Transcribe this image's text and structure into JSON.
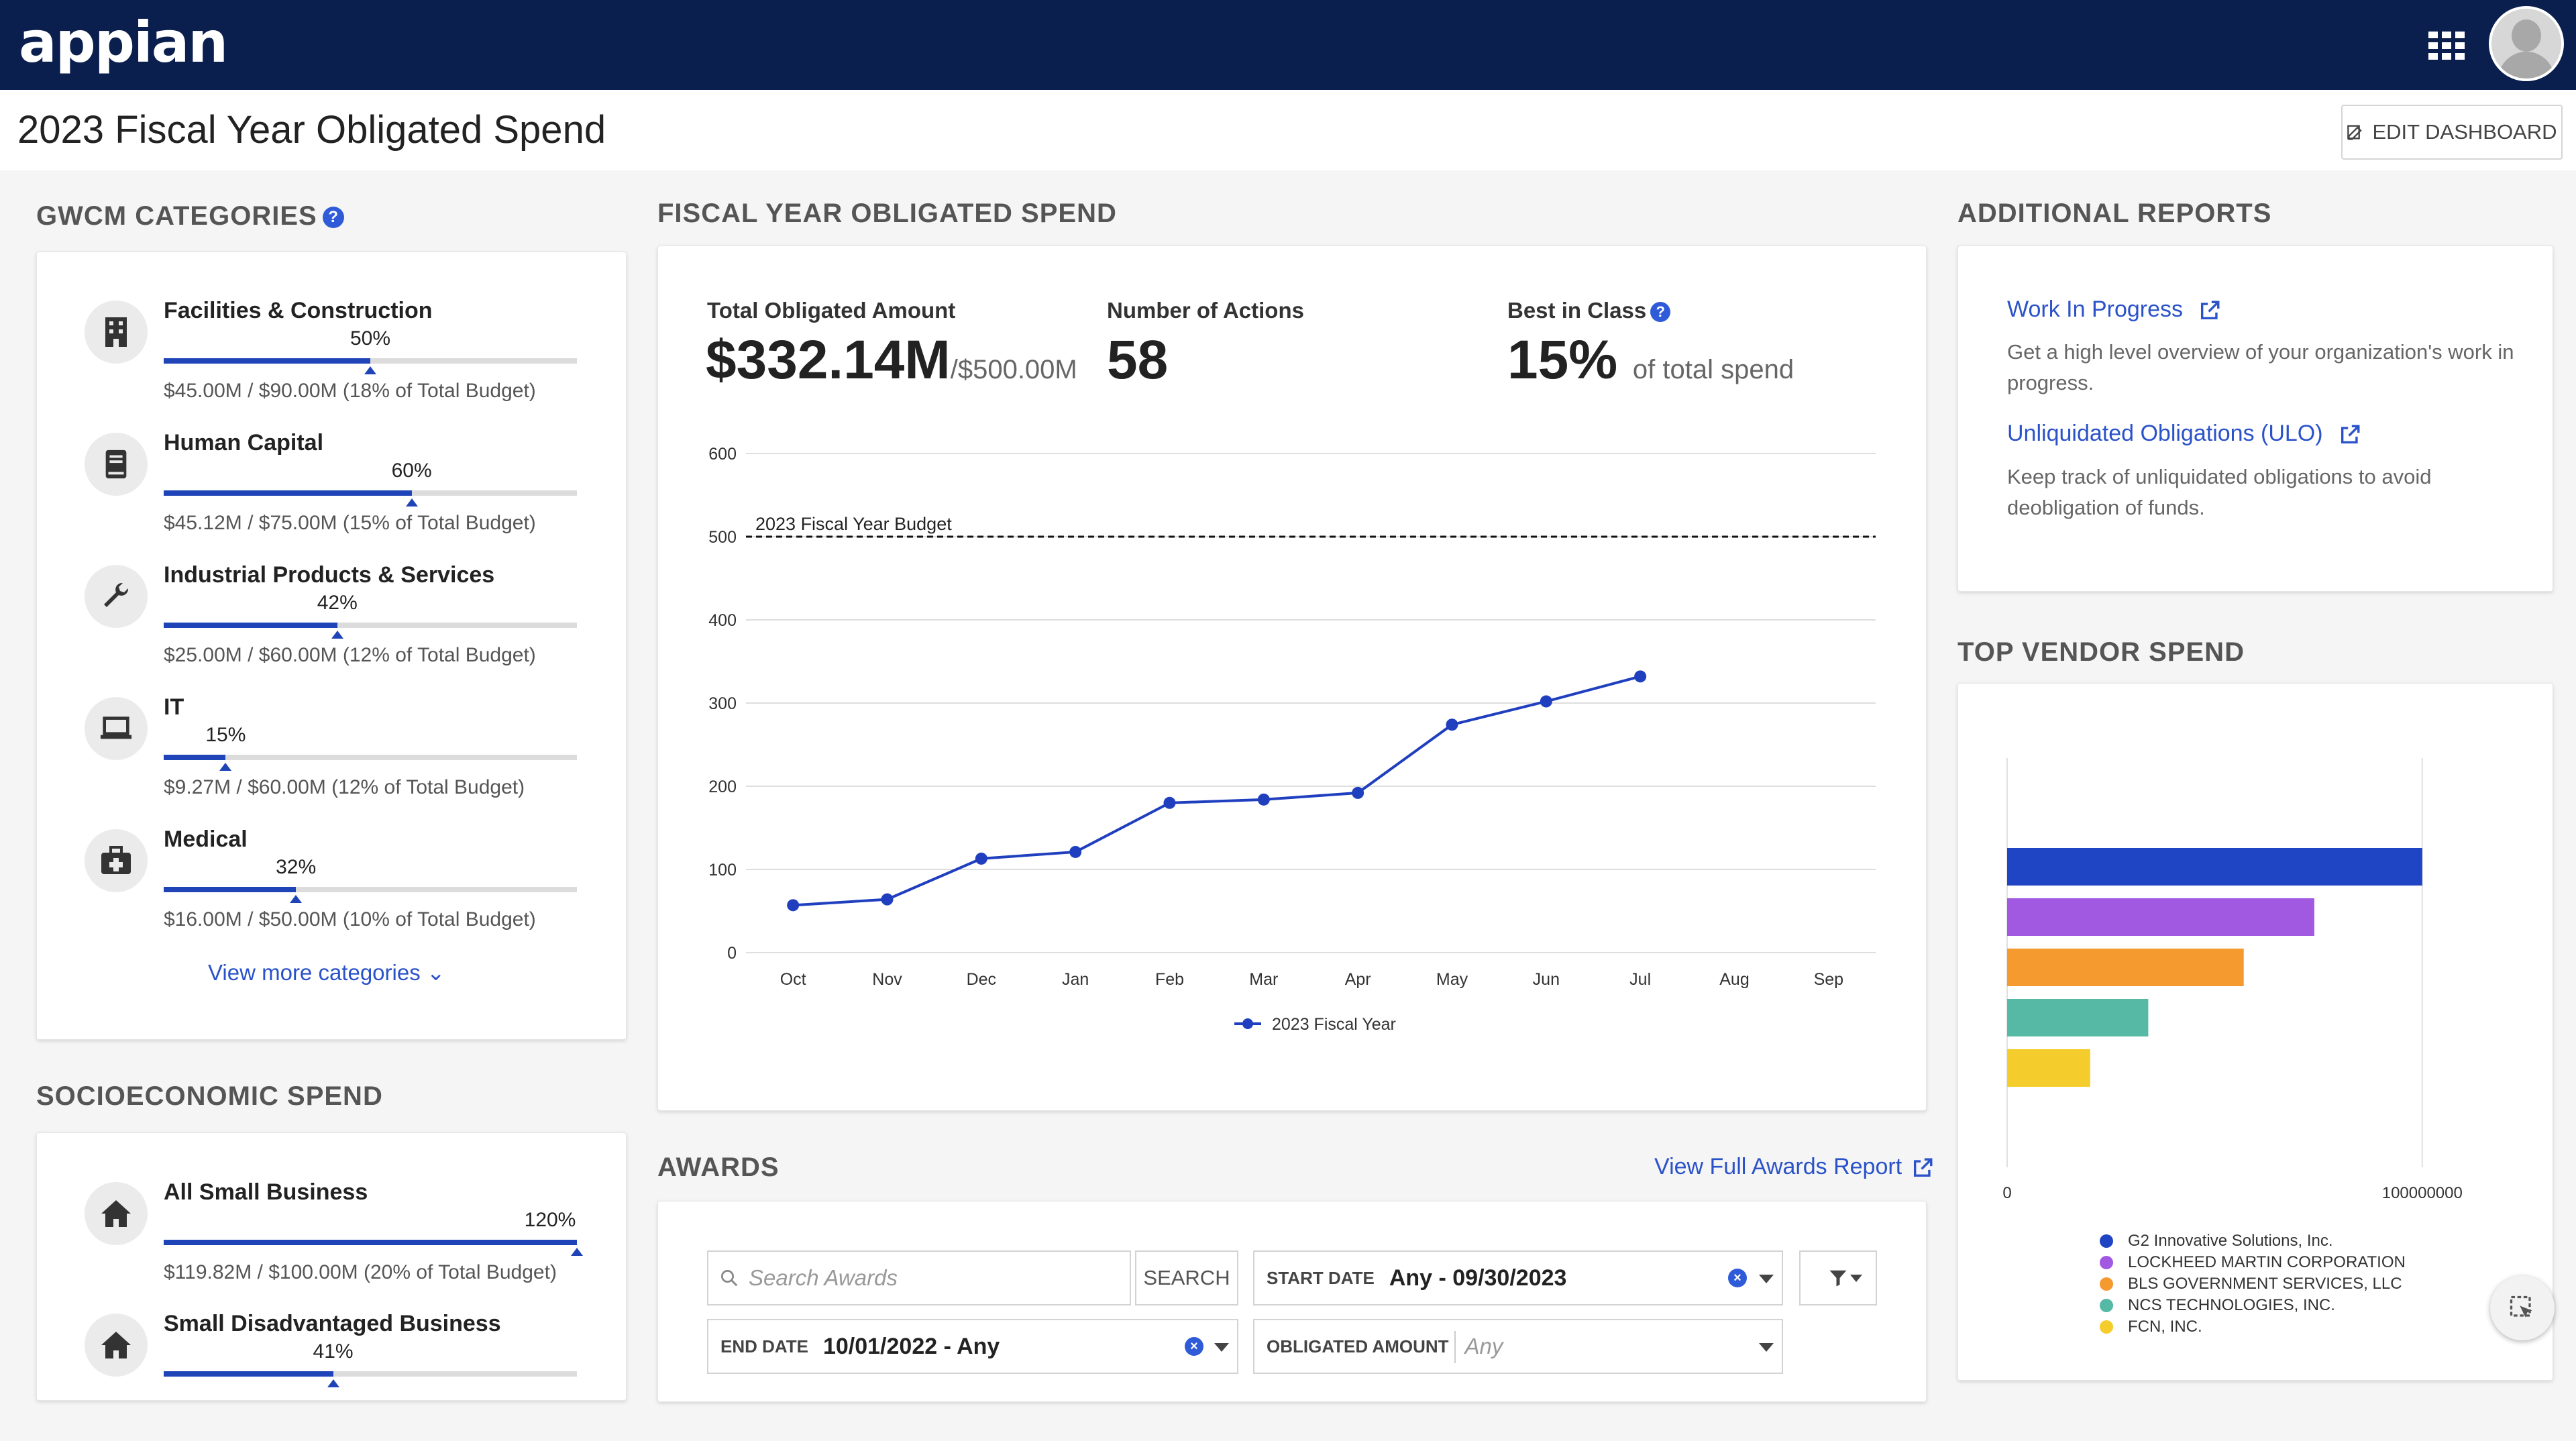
{
  "app": {
    "logo": "appian"
  },
  "header": {
    "title": "2023 Fiscal Year Obligated Spend",
    "edit_button": "EDIT DASHBOARD"
  },
  "gwcm": {
    "title": "GWCM CATEGORIES",
    "help": "?",
    "categories": [
      {
        "name": "Facilities & Construction",
        "percent": 50,
        "percent_label": "50%",
        "detail": "$45.00M / $90.00M (18% of Total Budget)",
        "icon": "building-icon"
      },
      {
        "name": "Human Capital",
        "percent": 60,
        "percent_label": "60%",
        "detail": "$45.12M / $75.00M (15% of Total Budget)",
        "icon": "book-icon"
      },
      {
        "name": "Industrial Products & Services",
        "percent": 42,
        "percent_label": "42%",
        "detail": "$25.00M / $60.00M (12% of Total Budget)",
        "icon": "wrench-icon"
      },
      {
        "name": "IT",
        "percent": 15,
        "percent_label": "15%",
        "detail": "$9.27M / $60.00M (12% of Total Budget)",
        "icon": "laptop-icon"
      },
      {
        "name": "Medical",
        "percent": 32,
        "percent_label": "32%",
        "detail": "$16.00M / $50.00M (10% of Total Budget)",
        "icon": "medical-kit-icon"
      }
    ],
    "view_more": "View more categories"
  },
  "socio": {
    "title": "SOCIOECONOMIC SPEND",
    "items": [
      {
        "name": "All Small Business",
        "percent": 100,
        "percent_label": "120%",
        "detail": "$119.82M / $100.00M (20% of Total Budget)",
        "icon": "home-icon"
      },
      {
        "name": "Small Disadvantaged Business",
        "percent": 41,
        "percent_label": "41%",
        "detail": "",
        "icon": "home-icon"
      }
    ]
  },
  "fiscal": {
    "title": "FISCAL YEAR OBLIGATED SPEND",
    "kpis": {
      "total_label": "Total Obligated Amount",
      "total_value": "$332.14M",
      "total_sub": "/$500.00M",
      "actions_label": "Number of Actions",
      "actions_value": "58",
      "bic_label": "Best in Class",
      "bic_value": "15%",
      "bic_sub": "of total spend"
    }
  },
  "chart_data": [
    {
      "type": "line",
      "categories": [
        "Oct",
        "Nov",
        "Dec",
        "Jan",
        "Feb",
        "Mar",
        "Apr",
        "May",
        "Jun",
        "Jul",
        "Aug",
        "Sep"
      ],
      "series": [
        {
          "name": "2023 Fiscal Year",
          "values": [
            57,
            64,
            113,
            121,
            180,
            184,
            192,
            274,
            302,
            332,
            null,
            null
          ],
          "color": "#1f3fbf"
        }
      ],
      "ylim": [
        0,
        600
      ],
      "yticks": [
        0,
        100,
        200,
        300,
        400,
        500,
        600
      ],
      "reference_line": {
        "value": 500,
        "label": "2023 Fiscal Year Budget"
      },
      "grid": true,
      "legend": "bottom"
    },
    {
      "type": "bar",
      "orientation": "horizontal",
      "categories": [
        "G2 Innovative Solutions, Inc.",
        "LOCKHEED MARTIN CORPORATION",
        "BLS GOVERNMENT SERVICES, LLC",
        "NCS TECHNOLOGIES, INC.",
        "FCN, INC."
      ],
      "values": [
        100000000,
        74000000,
        57000000,
        34000000,
        20000000
      ],
      "colors": [
        "#1f44c4",
        "#a259e2",
        "#f59a2f",
        "#55b9a6",
        "#f4cd2c"
      ],
      "xticks": [
        "0",
        "100000000"
      ],
      "legend": "bottom"
    }
  ],
  "reports": {
    "title": "ADDITIONAL REPORTS",
    "items": [
      {
        "label": "Work In Progress",
        "desc": "Get a high level overview of your organization's work in progress."
      },
      {
        "label": "Unliquidated Obligations (ULO)",
        "desc": "Keep track of unliquidated obligations to avoid deobligation of funds."
      }
    ]
  },
  "vendor": {
    "title": "TOP VENDOR SPEND"
  },
  "awards": {
    "title": "AWARDS",
    "full_report": "View Full Awards Report",
    "search_placeholder": "Search Awards",
    "search_button": "SEARCH",
    "start_label": "START DATE",
    "start_value": "Any - 09/30/2023",
    "end_label": "END DATE",
    "end_value": "10/01/2022 - Any",
    "amount_label": "OBLIGATED AMOUNT",
    "amount_placeholder": "Any"
  }
}
